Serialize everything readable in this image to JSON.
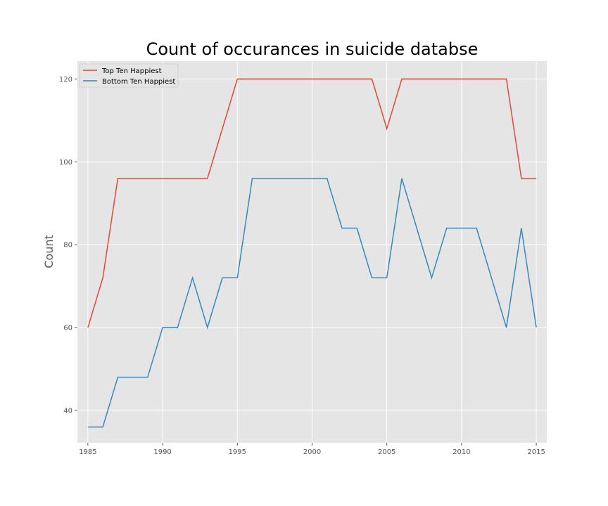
{
  "chart_data": {
    "type": "line",
    "title": "Count of occurances in suicide databse",
    "xlabel": "",
    "ylabel": "Count",
    "xlim": [
      1984.3,
      2015.7
    ],
    "ylim": [
      32.2,
      124.3
    ],
    "xticks": [
      1985,
      1990,
      1995,
      2000,
      2005,
      2010,
      2015
    ],
    "yticks": [
      40,
      60,
      80,
      100,
      120
    ],
    "grid": true,
    "legend_position": "top-left",
    "x": [
      1985,
      1986,
      1987,
      1988,
      1989,
      1990,
      1991,
      1992,
      1993,
      1994,
      1995,
      1996,
      1997,
      1998,
      1999,
      2000,
      2001,
      2002,
      2003,
      2004,
      2005,
      2006,
      2007,
      2008,
      2009,
      2010,
      2011,
      2012,
      2013,
      2014,
      2015
    ],
    "series": [
      {
        "name": "Top Ten Happiest",
        "color": "#E24A33",
        "values": [
          60,
          72,
          96,
          96,
          96,
          96,
          96,
          96,
          96,
          108,
          120,
          120,
          120,
          120,
          120,
          120,
          120,
          120,
          120,
          120,
          108,
          120,
          120,
          120,
          120,
          120,
          120,
          120,
          120,
          96,
          96
        ]
      },
      {
        "name": "Bottom Ten Happiest",
        "color": "#348ABD",
        "values": [
          36,
          36,
          48,
          48,
          48,
          60,
          60,
          72,
          60,
          72,
          72,
          96,
          96,
          96,
          96,
          96,
          96,
          84,
          84,
          72,
          72,
          96,
          84,
          72,
          84,
          84,
          84,
          72,
          60,
          84,
          60
        ]
      }
    ]
  }
}
